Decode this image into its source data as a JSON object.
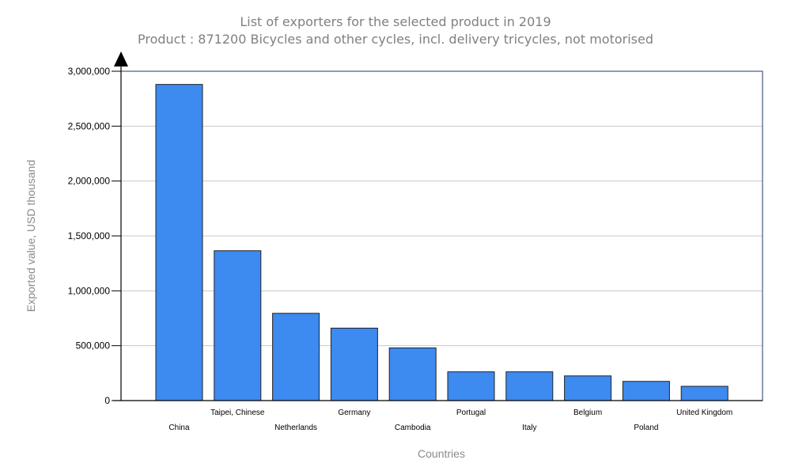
{
  "chart_data": {
    "type": "bar",
    "title": "List of exporters for the selected product in 2019",
    "subtitle": "Product : 871200 Bicycles and other cycles, incl. delivery tricycles, not motorised",
    "xlabel": "Countries",
    "ylabel": "Exported value, USD thousand",
    "categories": [
      "China",
      "Taipei, Chinese",
      "Netherlands",
      "Germany",
      "Cambodia",
      "Portugal",
      "Italy",
      "Belgium",
      "Poland",
      "United Kingdom"
    ],
    "values": [
      2880000,
      1365000,
      795000,
      660000,
      480000,
      262000,
      262000,
      225000,
      175000,
      130000
    ],
    "ylim": [
      0,
      3000000
    ],
    "yticks": [
      0,
      500000,
      1000000,
      1500000,
      2000000,
      2500000,
      3000000
    ],
    "ytick_labels": [
      "0",
      "500,000",
      "1,000,000",
      "1,500,000",
      "2,000,000",
      "2,500,000",
      "3,000,000"
    ],
    "grid": true,
    "legend": "none",
    "bar_color": "#3d8af0",
    "bar_stroke": "#222222",
    "plot_border_color": "#1f3a6b"
  }
}
